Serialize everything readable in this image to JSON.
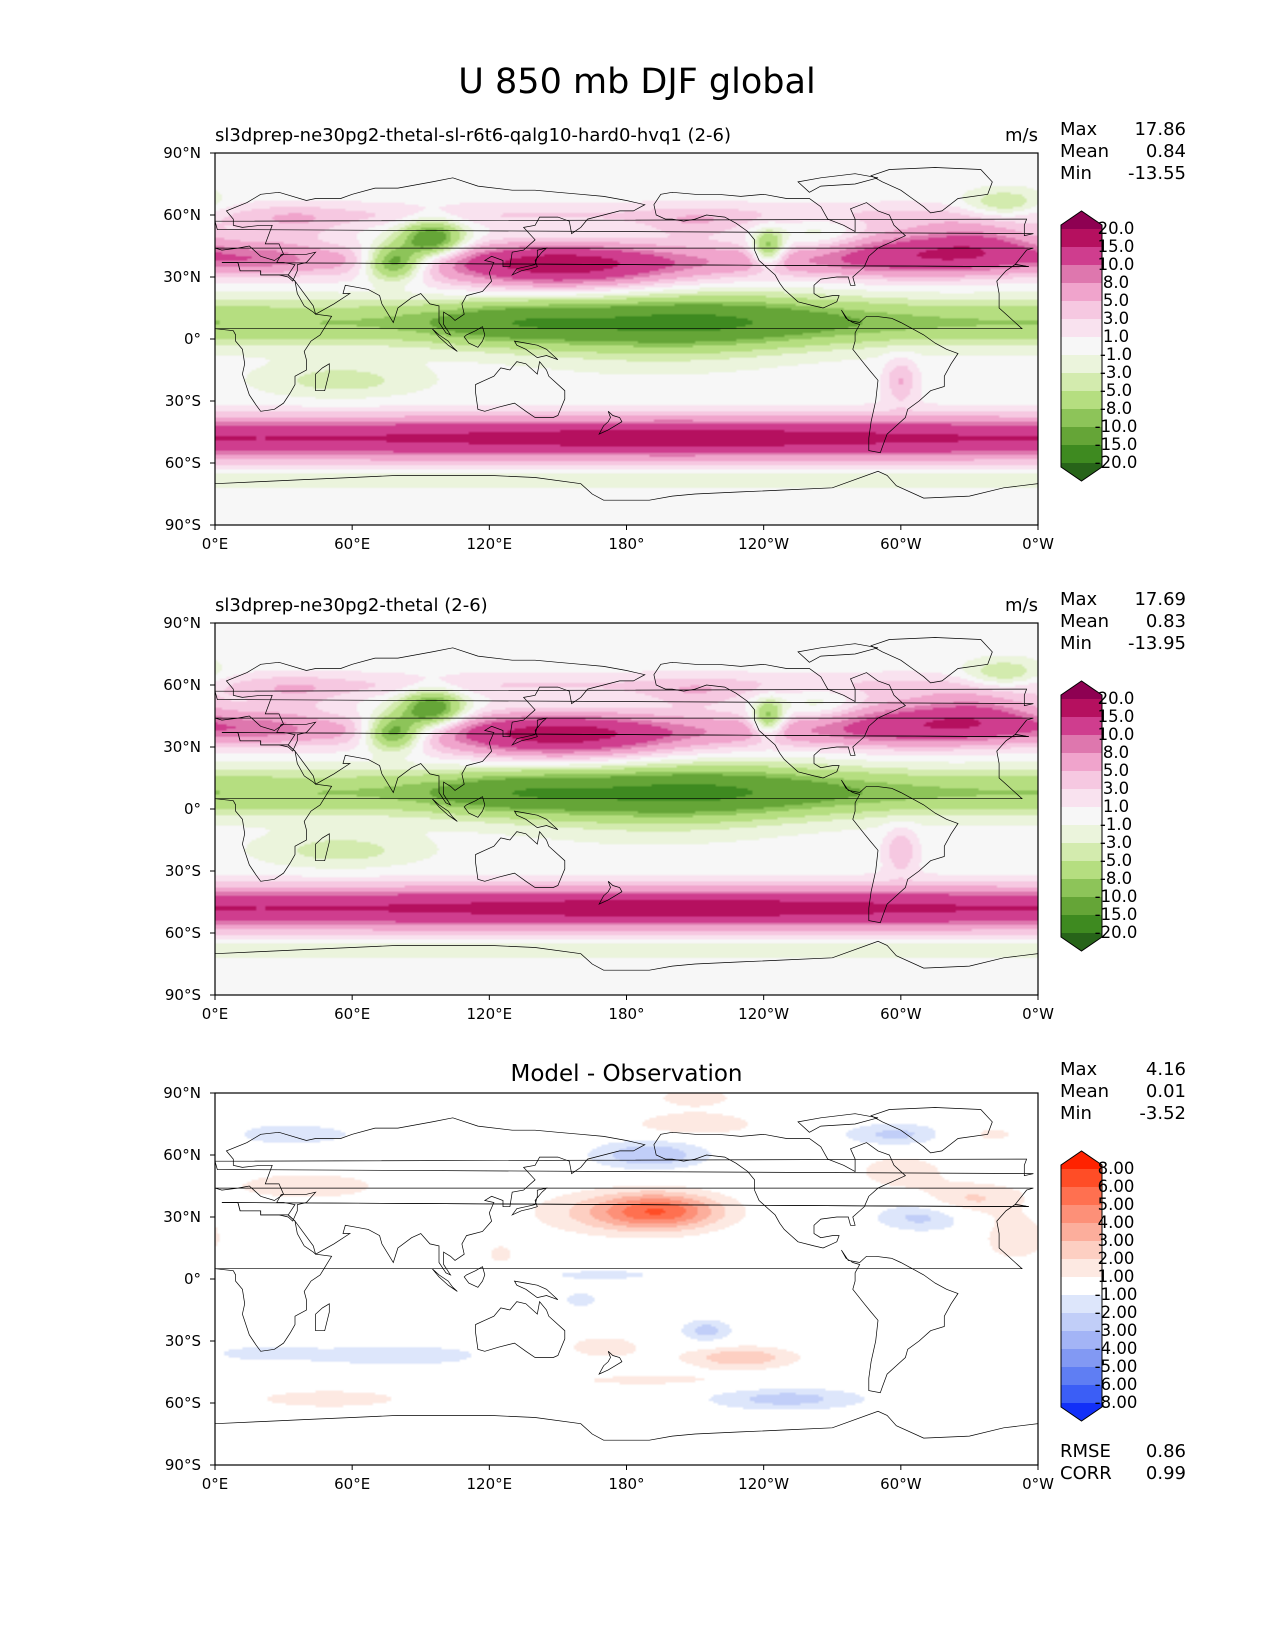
{
  "figure": {
    "title": "U 850 mb DJF global"
  },
  "chart_data": [
    {
      "type": "contour-map",
      "title": "sl3dprep-ne30pg2-thetal-sl-r6t6-qalg10-hard0-hvq1 (2-6)",
      "units": "m/s",
      "x_ticks": [
        "0°E",
        "60°E",
        "120°E",
        "180°",
        "120°W",
        "60°W",
        "0°W"
      ],
      "y_ticks": [
        "90°N",
        "60°N",
        "30°N",
        "0°",
        "30°S",
        "60°S",
        "90°S"
      ],
      "xlim": [
        0,
        360
      ],
      "ylim": [
        -90,
        90
      ],
      "stats": [
        {
          "label": "Max",
          "value": "17.86"
        },
        {
          "label": "Mean",
          "value": "0.84"
        },
        {
          "label": "Min",
          "value": "-13.55"
        }
      ],
      "colorbar": {
        "levels": [
          "20.0",
          "15.0",
          "10.0",
          "8.0",
          "5.0",
          "3.0",
          "1.0",
          "-1.0",
          "-3.0",
          "-5.0",
          "-8.0",
          "-10.0",
          "-15.0",
          "-20.0"
        ],
        "colors": [
          "#8e0152",
          "#b5105f",
          "#cf3d8e",
          "#de77ae",
          "#f0a4cc",
          "#f6c8e1",
          "#f9e2ef",
          "#f7f7f7",
          "#ebf4dc",
          "#d3ebae",
          "#b5de80",
          "#8dc459",
          "#65a537",
          "#3e8a20",
          "#276419"
        ]
      }
    },
    {
      "type": "contour-map",
      "title": "sl3dprep-ne30pg2-thetal (2-6)",
      "units": "m/s",
      "x_ticks": [
        "0°E",
        "60°E",
        "120°E",
        "180°",
        "120°W",
        "60°W",
        "0°W"
      ],
      "y_ticks": [
        "90°N",
        "60°N",
        "30°N",
        "0°",
        "30°S",
        "60°S",
        "90°S"
      ],
      "xlim": [
        0,
        360
      ],
      "ylim": [
        -90,
        90
      ],
      "stats": [
        {
          "label": "Max",
          "value": "17.69"
        },
        {
          "label": "Mean",
          "value": "0.83"
        },
        {
          "label": "Min",
          "value": "-13.95"
        }
      ],
      "colorbar": {
        "levels": [
          "20.0",
          "15.0",
          "10.0",
          "8.0",
          "5.0",
          "3.0",
          "1.0",
          "-1.0",
          "-3.0",
          "-5.0",
          "-8.0",
          "-10.0",
          "-15.0",
          "-20.0"
        ],
        "colors": [
          "#8e0152",
          "#b5105f",
          "#cf3d8e",
          "#de77ae",
          "#f0a4cc",
          "#f6c8e1",
          "#f9e2ef",
          "#f7f7f7",
          "#ebf4dc",
          "#d3ebae",
          "#b5de80",
          "#8dc459",
          "#65a537",
          "#3e8a20",
          "#276419"
        ]
      }
    },
    {
      "type": "contour-map",
      "title": "Model - Observation",
      "units": "",
      "x_ticks": [
        "0°E",
        "60°E",
        "120°E",
        "180°",
        "120°W",
        "60°W",
        "0°W"
      ],
      "y_ticks": [
        "90°N",
        "60°N",
        "30°N",
        "0°",
        "30°S",
        "60°S",
        "90°S"
      ],
      "xlim": [
        0,
        360
      ],
      "ylim": [
        -90,
        90
      ],
      "stats": [
        {
          "label": "Max",
          "value": "4.16"
        },
        {
          "label": "Mean",
          "value": "0.01"
        },
        {
          "label": "Min",
          "value": "-3.52"
        }
      ],
      "extra_stats": [
        {
          "label": "RMSE",
          "value": "0.86"
        },
        {
          "label": "CORR",
          "value": "0.99"
        }
      ],
      "colorbar": {
        "levels": [
          "8.00",
          "6.00",
          "5.00",
          "4.00",
          "3.00",
          "2.00",
          "1.00",
          "-1.00",
          "-2.00",
          "-3.00",
          "-4.00",
          "-5.00",
          "-6.00",
          "-8.00"
        ],
        "colors": [
          "#ff2200",
          "#ff4d26",
          "#ff7050",
          "#fd9078",
          "#fcae9c",
          "#fdcfc2",
          "#fde9e2",
          "#ffffff",
          "#dde6fb",
          "#c1cef8",
          "#a3b4f6",
          "#8299f3",
          "#5f7ef3",
          "#3b5ef6",
          "#1230f8"
        ]
      }
    }
  ]
}
